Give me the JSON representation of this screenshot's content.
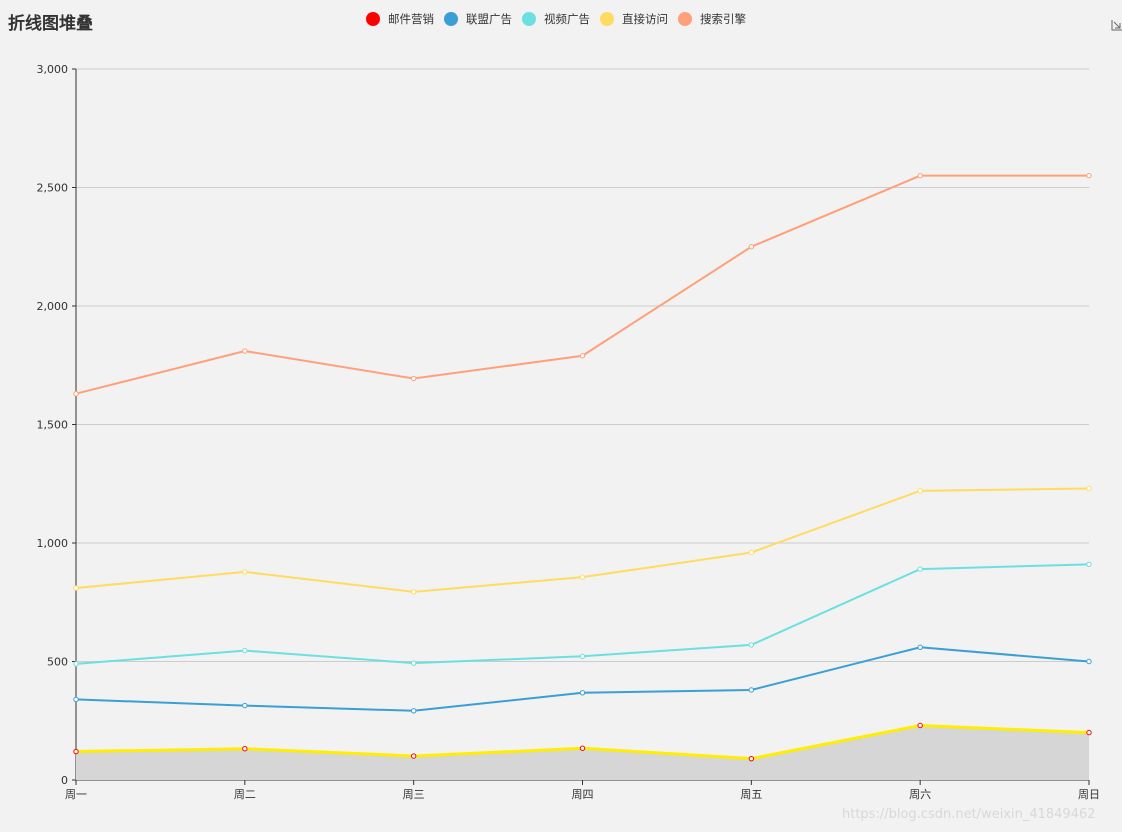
{
  "chart_data": {
    "type": "line",
    "title": "折线图堆叠",
    "categories": [
      "周一",
      "周二",
      "周三",
      "周四",
      "周五",
      "周六",
      "周日"
    ],
    "ylim": [
      0,
      3000
    ],
    "yticks": [
      0,
      500,
      1000,
      1500,
      2000,
      2500,
      3000
    ],
    "ytick_labels": [
      "0",
      "500",
      "1,000",
      "1,500",
      "2,000",
      "2,500",
      "3,000"
    ],
    "grid": "horizontal",
    "legend_position": "top-center",
    "stacked": true,
    "series": [
      {
        "name": "邮件营销",
        "values": [
          120,
          132,
          101,
          134,
          90,
          230,
          200
        ],
        "color": "#ff0000",
        "line_color": "#ffee00",
        "area_color": "#d6d6d6"
      },
      {
        "name": "联盟广告",
        "values": [
          340,
          314,
          292,
          368,
          380,
          560,
          500
        ],
        "color": "#3a9fd6"
      },
      {
        "name": "视频广告",
        "values": [
          490,
          546,
          493,
          522,
          570,
          890,
          910
        ],
        "color": "#6ce0e0"
      },
      {
        "name": "直接访问",
        "values": [
          810,
          878,
          794,
          856,
          960,
          1220,
          1230
        ],
        "color": "#ffdc60"
      },
      {
        "name": "搜索引擎",
        "values": [
          1630,
          1810,
          1694,
          1790,
          2250,
          2550,
          2550
        ],
        "color": "#ffa07a"
      }
    ]
  },
  "watermark": "https://blog.csdn.net/weixin_41849462"
}
